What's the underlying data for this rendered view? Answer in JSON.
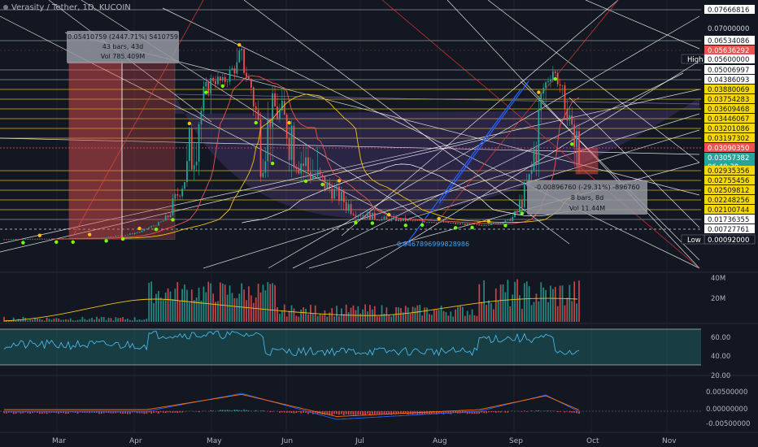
{
  "header": {
    "title": "Verasity / Tether, 1D, KUCOIN"
  },
  "price_axis": {
    "labels": [
      {
        "text": "0.07666816",
        "style": "box-white"
      },
      {
        "text": "0.07000000",
        "style": "plain"
      },
      {
        "text": "0.06534086",
        "style": "box-white"
      },
      {
        "text": "0.05636292",
        "style": "box-red"
      },
      {
        "text": "0.05600000",
        "style": "box-white",
        "tag": "High"
      },
      {
        "text": "0.05006997",
        "style": "box-white"
      },
      {
        "text": "0.04386093",
        "style": "box-white"
      },
      {
        "text": "0.03880069",
        "style": "box-yellow"
      },
      {
        "text": "0.03754283",
        "style": "box-yellow"
      },
      {
        "text": "0.03609468",
        "style": "box-yellow"
      },
      {
        "text": "0.03446067",
        "style": "box-yellow"
      },
      {
        "text": "0.03201086",
        "style": "box-yellow"
      },
      {
        "text": "0.03197302",
        "style": "box-yellow"
      },
      {
        "text": "0.03090350",
        "style": "box-red"
      },
      {
        "text": "0.03057382",
        "style": "box-teal",
        "sub": "06:48:38"
      },
      {
        "text": "0.02935356",
        "style": "box-yellow"
      },
      {
        "text": "0.02755456",
        "style": "box-yellow"
      },
      {
        "text": "0.02509812",
        "style": "box-yellow"
      },
      {
        "text": "0.02248256",
        "style": "box-yellow"
      },
      {
        "text": "0.02100744",
        "style": "box-yellow"
      },
      {
        "text": "0.01736355",
        "style": "box-white"
      },
      {
        "text": "0.00727761",
        "style": "box-white"
      },
      {
        "text": "0.00092000",
        "style": "box-dark",
        "tag": "Low"
      }
    ]
  },
  "volume_axis": [
    "40M",
    "20M"
  ],
  "rsi_axis": [
    "60.00",
    "40.00",
    "20.00"
  ],
  "macd_axis": [
    "0.00500000",
    "0.00000000",
    "-0.00500000"
  ],
  "time_axis": [
    "Mar",
    "Apr",
    "May",
    "Jun",
    "Jul",
    "Aug",
    "Sep",
    "Oct",
    "Nov"
  ],
  "annotations": {
    "measure_up": {
      "line1": "0.05410759 (2447.71%) 5410759",
      "line2": "43 bars, 43d",
      "line3": "Vol 785.409M"
    },
    "measure_down": {
      "line1": "-0.00896760 (-29.31%) -896760",
      "line2": "8 bars, 8d",
      "line3": "Vol 11.44M"
    },
    "fib_label": "0.9467896999828986"
  },
  "colors": {
    "background": "#131722",
    "up": "#26a69a",
    "down": "#ef5350",
    "fib_yellow": "#f5d90a",
    "ma_yellow": "#f0c419",
    "rsi_line": "#4fc3f7",
    "macd_line": "#2962ff",
    "signal_line": "#ff6d00"
  },
  "chart_data": {
    "type": "candlestick",
    "title": "Verasity / Tether, 1D, KUCOIN",
    "x_range": [
      "Feb 2021",
      "Nov 2021"
    ],
    "y_range": [
      0.00092,
      0.07666816
    ],
    "price_path_key_points": [
      {
        "date": "Feb",
        "price": 0.0012
      },
      {
        "date": "Mar 10",
        "price": 0.0035
      },
      {
        "date": "Mar 25",
        "price": 0.018
      },
      {
        "date": "Apr 10",
        "price": 0.045
      },
      {
        "date": "Apr 15",
        "price": 0.056
      },
      {
        "date": "May 1",
        "price": 0.033
      },
      {
        "date": "May 20",
        "price": 0.027
      },
      {
        "date": "Jun 5",
        "price": 0.014
      },
      {
        "date": "Jul 10",
        "price": 0.01
      },
      {
        "date": "Jul 25",
        "price": 0.008
      },
      {
        "date": "Aug 15",
        "price": 0.016
      },
      {
        "date": "Aug 30",
        "price": 0.038
      },
      {
        "date": "Sep 5",
        "price": 0.05
      },
      {
        "date": "Sep 20",
        "price": 0.034
      },
      {
        "date": "Sep 27",
        "price": 0.03057382
      }
    ],
    "high": 0.056,
    "low": 0.00092,
    "last": 0.03057382,
    "volume_max": "40M",
    "rsi_levels": [
      70,
      30
    ]
  }
}
